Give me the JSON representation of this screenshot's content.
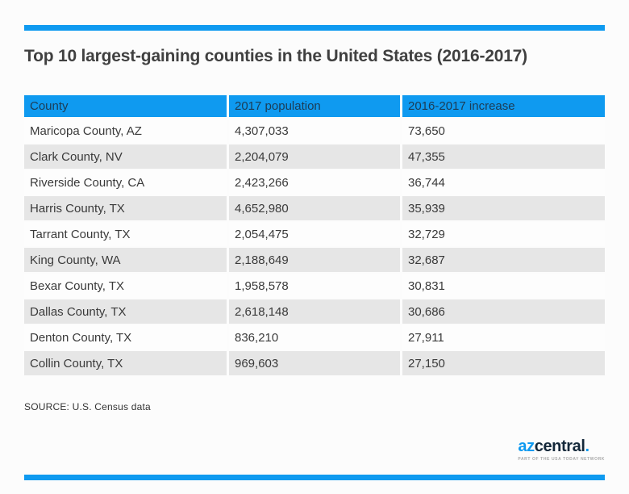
{
  "title": "Top 10 largest-gaining counties in the United States (2016-2017)",
  "chart_data": {
    "type": "table",
    "title": "Top 10 largest-gaining counties in the United States (2016-2017)",
    "columns": [
      "County",
      "2017 population",
      "2016-2017 increase"
    ],
    "rows": [
      [
        "Maricopa County, AZ",
        "4,307,033",
        "73,650"
      ],
      [
        "Clark County, NV",
        "2,204,079",
        "47,355"
      ],
      [
        "Riverside County, CA",
        "2,423,266",
        "36,744"
      ],
      [
        "Harris County, TX",
        "4,652,980",
        "35,939"
      ],
      [
        "Tarrant County, TX",
        "2,054,475",
        "32,729"
      ],
      [
        "King County, WA",
        "2,188,649",
        "32,687"
      ],
      [
        "Bexar County, TX",
        "1,958,578",
        "30,831"
      ],
      [
        "Dallas County, TX",
        "2,618,148",
        "30,686"
      ],
      [
        "Denton County, TX",
        "836,210",
        "27,911"
      ],
      [
        "Collin County, TX",
        "969,603",
        "27,150"
      ]
    ],
    "source": "SOURCE: U.S. Census data"
  },
  "source": "SOURCE: U.S. Census data",
  "logo": {
    "prefix": "az",
    "name": "central",
    "dot": ".",
    "tagline": "PART OF THE USA TODAY NETWORK"
  },
  "colors": {
    "accent_blue": "#0f9af0",
    "header_text": "#1c3c55",
    "title_text": "#404040",
    "body_text": "#3a3a3a",
    "row_alt": "#e6e6e6",
    "row_white": "#fdfdfd",
    "source_text": "#333333",
    "logo_dark": "#14283a"
  }
}
